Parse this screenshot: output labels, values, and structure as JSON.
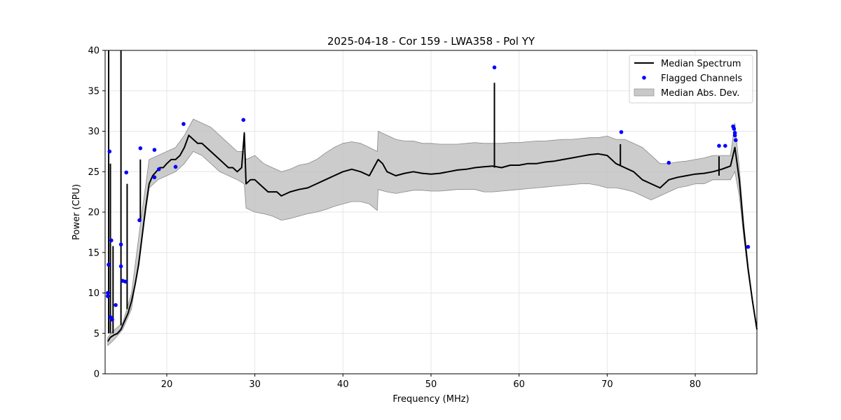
{
  "chart_data": {
    "type": "line",
    "title": "2025-04-18 - Cor 159 - LWA358 - Pol YY",
    "xlabel": "Frequency (MHz)",
    "ylabel": "Power (CPU)",
    "xlim": [
      13,
      87
    ],
    "ylim": [
      0,
      40
    ],
    "xticks": [
      20,
      30,
      40,
      50,
      60,
      70,
      80
    ],
    "yticks": [
      0,
      5,
      10,
      15,
      20,
      25,
      30,
      35,
      40
    ],
    "grid": true,
    "legend_position": "top-right",
    "colors": {
      "median": "#000000",
      "flagged": "#0000ff",
      "mad": "#bfbfbf"
    },
    "legend": [
      {
        "label": "Median Spectrum",
        "kind": "line"
      },
      {
        "label": "Flagged Channels",
        "kind": "dot"
      },
      {
        "label": "Median Abs. Dev.",
        "kind": "patch"
      }
    ],
    "series": [
      {
        "name": "Median Spectrum",
        "x": [
          13.3,
          13.6,
          14.0,
          14.4,
          14.8,
          15.2,
          15.6,
          16.0,
          16.4,
          16.8,
          17.2,
          17.6,
          18.0,
          18.4,
          18.8,
          19.2,
          19.6,
          20.0,
          20.5,
          21.0,
          21.5,
          22.0,
          22.5,
          23.0,
          23.5,
          24.0,
          24.5,
          25.0,
          25.5,
          26.0,
          26.5,
          27.0,
          27.5,
          28.0,
          28.5,
          28.8,
          29.0,
          29.5,
          30.0,
          30.5,
          31.0,
          31.5,
          32.0,
          32.5,
          33.0,
          34.0,
          35.0,
          36.0,
          37.0,
          38.0,
          39.0,
          40.0,
          41.0,
          42.0,
          43.0,
          44.0,
          44.5,
          45.0,
          46.0,
          47.0,
          48.0,
          49.0,
          50.0,
          51.0,
          52.0,
          53.0,
          54.0,
          55.0,
          56.0,
          57.0,
          58.0,
          59.0,
          60.0,
          61.0,
          62.0,
          63.0,
          64.0,
          65.0,
          66.0,
          67.0,
          68.0,
          69.0,
          70.0,
          71.0,
          72.0,
          73.0,
          74.0,
          75.0,
          76.0,
          77.0,
          78.0,
          79.0,
          80.0,
          81.0,
          82.0,
          83.0,
          83.5,
          84.0,
          84.5,
          85.0,
          85.5,
          86.0,
          86.5,
          87.0
        ],
        "values": [
          4.0,
          4.5,
          4.8,
          5.0,
          5.5,
          6.5,
          7.5,
          9.0,
          11.0,
          13.5,
          17.0,
          20.5,
          23.5,
          24.5,
          25.0,
          25.5,
          25.5,
          26.0,
          26.5,
          26.5,
          27.0,
          28.0,
          29.5,
          29.0,
          28.5,
          28.5,
          28.0,
          27.5,
          27.0,
          26.5,
          26.0,
          25.5,
          25.5,
          25.0,
          25.5,
          29.8,
          23.5,
          24.0,
          24.0,
          23.5,
          23.0,
          22.5,
          22.5,
          22.5,
          22.0,
          22.5,
          22.8,
          23.0,
          23.5,
          24.0,
          24.5,
          25.0,
          25.3,
          25.0,
          24.5,
          26.5,
          26.0,
          25.0,
          24.5,
          24.8,
          25.0,
          24.8,
          24.7,
          24.8,
          25.0,
          25.2,
          25.3,
          25.5,
          25.6,
          25.7,
          25.5,
          25.8,
          25.8,
          26.0,
          26.0,
          26.2,
          26.3,
          26.5,
          26.7,
          26.9,
          27.1,
          27.2,
          27.0,
          26.0,
          25.5,
          25.0,
          24.0,
          23.5,
          23.0,
          24.0,
          24.3,
          24.5,
          24.7,
          24.8,
          25.0,
          25.3,
          25.5,
          25.7,
          28.0,
          24.0,
          18.0,
          13.0,
          9.0,
          5.5
        ]
      },
      {
        "name": "Median Abs. Dev.",
        "x": [
          13.3,
          14.0,
          15.0,
          16.0,
          17.0,
          18.0,
          19.0,
          20.0,
          21.0,
          22.0,
          23.0,
          24.0,
          25.0,
          26.0,
          27.0,
          28.0,
          28.8,
          29.0,
          30.0,
          31.0,
          32.0,
          33.0,
          34.0,
          35.0,
          36.0,
          37.0,
          38.0,
          39.0,
          40.0,
          41.0,
          42.0,
          43.0,
          43.9,
          44.0,
          45.0,
          46.0,
          47.0,
          48.0,
          49.0,
          50.0,
          51.0,
          52.0,
          53.0,
          54.0,
          55.0,
          56.0,
          57.0,
          58.0,
          59.0,
          60.0,
          61.0,
          62.0,
          63.0,
          64.0,
          65.0,
          66.0,
          67.0,
          68.0,
          69.0,
          70.0,
          71.0,
          72.0,
          73.0,
          74.0,
          75.0,
          76.0,
          77.0,
          78.0,
          79.0,
          80.0,
          81.0,
          82.0,
          83.0,
          84.0,
          84.5,
          85.0,
          85.5,
          86.0,
          86.5,
          87.0
        ],
        "lower": [
          3.5,
          4.2,
          5.5,
          8.0,
          15.5,
          23.0,
          24.0,
          24.5,
          25.0,
          26.0,
          27.5,
          27.0,
          26.0,
          25.0,
          24.5,
          24.0,
          23.5,
          20.5,
          20.0,
          19.8,
          19.5,
          19.0,
          19.2,
          19.5,
          19.8,
          20.0,
          20.3,
          20.7,
          21.0,
          21.3,
          21.3,
          21.0,
          20.2,
          22.8,
          22.5,
          22.3,
          22.5,
          22.7,
          22.7,
          22.6,
          22.6,
          22.7,
          22.8,
          22.8,
          22.8,
          22.5,
          22.5,
          22.6,
          22.7,
          22.8,
          22.9,
          23.0,
          23.1,
          23.2,
          23.3,
          23.4,
          23.5,
          23.5,
          23.3,
          23.0,
          23.0,
          22.8,
          22.5,
          22.0,
          21.5,
          22.0,
          22.5,
          23.0,
          23.2,
          23.5,
          23.5,
          24.0,
          24.0,
          24.0,
          25.0,
          22.0,
          17.0,
          12.5,
          8.8,
          5.5
        ],
        "upper": [
          4.5,
          5.4,
          6.3,
          10.0,
          18.5,
          26.5,
          27.0,
          27.5,
          28.0,
          29.5,
          31.5,
          31.0,
          30.5,
          29.5,
          28.5,
          27.5,
          27.5,
          26.5,
          27.0,
          26.0,
          25.5,
          25.0,
          25.3,
          25.8,
          26.0,
          26.5,
          27.3,
          28.0,
          28.5,
          28.7,
          28.5,
          28.0,
          27.5,
          30.0,
          29.5,
          29.0,
          28.8,
          28.8,
          28.5,
          28.5,
          28.4,
          28.4,
          28.4,
          28.5,
          28.6,
          28.5,
          28.5,
          28.5,
          28.6,
          28.6,
          28.7,
          28.8,
          28.8,
          28.9,
          29.0,
          29.0,
          29.1,
          29.2,
          29.2,
          29.4,
          29.0,
          29.0,
          28.5,
          28.0,
          27.0,
          26.0,
          26.0,
          26.2,
          26.3,
          26.5,
          26.7,
          27.0,
          27.0,
          27.0,
          31.0,
          25.5,
          18.8,
          13.5,
          9.2,
          5.6
        ]
      },
      {
        "name": "Flagged Channels",
        "points": [
          [
            13.5,
            27.5
          ],
          [
            13.7,
            16.5
          ],
          [
            13.4,
            13.5
          ],
          [
            13.3,
            10.0
          ],
          [
            13.3,
            9.6
          ],
          [
            13.6,
            7.0
          ],
          [
            13.8,
            6.7
          ],
          [
            14.2,
            8.5
          ],
          [
            14.8,
            16.0
          ],
          [
            14.8,
            13.3
          ],
          [
            15.0,
            11.5
          ],
          [
            15.3,
            11.4
          ],
          [
            15.4,
            24.9
          ],
          [
            17.0,
            27.9
          ],
          [
            16.9,
            19.0
          ],
          [
            18.6,
            27.7
          ],
          [
            18.6,
            24.3
          ],
          [
            19.1,
            25.3
          ],
          [
            21.0,
            25.6
          ],
          [
            21.9,
            30.9
          ],
          [
            28.7,
            31.4
          ],
          [
            57.2,
            37.9
          ],
          [
            71.6,
            29.9
          ],
          [
            77.0,
            26.1
          ],
          [
            82.7,
            28.2
          ],
          [
            83.4,
            28.2
          ],
          [
            84.3,
            30.6
          ],
          [
            84.4,
            30.3
          ],
          [
            84.5,
            29.8
          ],
          [
            84.5,
            29.5
          ],
          [
            84.6,
            28.9
          ],
          [
            86.0,
            15.7
          ]
        ]
      }
    ],
    "spikes": [
      {
        "x": 13.4,
        "y": 40.0,
        "base": 5.0
      },
      {
        "x": 13.6,
        "y": 26.0,
        "base": 5.0
      },
      {
        "x": 13.9,
        "y": 15.8,
        "base": 5.0
      },
      {
        "x": 14.8,
        "y": 40.0,
        "base": 6.0
      },
      {
        "x": 15.5,
        "y": 23.5,
        "base": 8.0
      },
      {
        "x": 17.0,
        "y": 26.5,
        "base": 19.0
      },
      {
        "x": 57.2,
        "y": 36.0,
        "base": 25.5
      },
      {
        "x": 71.5,
        "y": 28.4,
        "base": 25.8
      },
      {
        "x": 82.7,
        "y": 26.9,
        "base": 24.5
      }
    ]
  }
}
